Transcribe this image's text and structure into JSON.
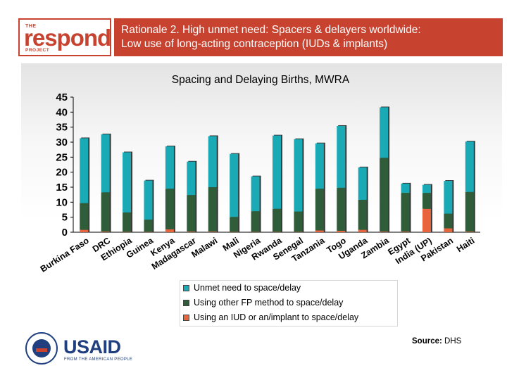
{
  "header": {
    "logo": {
      "the": "THE",
      "word": "respond",
      "project": "PROJECT"
    },
    "title_line1": "Rationale 2. High unmet need: Spacers & delayers worldwide:",
    "title_line2": "Low use of long-acting contraception (IUDs & implants)",
    "accent_color": "#c7432f"
  },
  "footer": {
    "usaid_name": "USAID",
    "usaid_tagline": "FROM THE AMERICAN PEOPLE",
    "source_label": "Source:",
    "source_value": "DHS"
  },
  "chart_data": {
    "type": "bar",
    "stacked": true,
    "title": "Spacing and Delaying Births, MWRA",
    "xlabel": "",
    "ylabel": "",
    "ylim": [
      0,
      45
    ],
    "yticks": [
      0,
      5,
      10,
      15,
      20,
      25,
      30,
      35,
      40,
      45
    ],
    "grid": false,
    "categories": [
      "Burkina Faso",
      "DRC",
      "Ethiopia",
      "Guinea",
      "Kenya",
      "Madagascar",
      "Malawi",
      "Mali",
      "Nigeria",
      "Rwanda",
      "Senegal",
      "Tanzania",
      "Togo",
      "Uganda",
      "Zambia",
      "Egypt",
      "India (UP)",
      "Pakistan",
      "Haiti"
    ],
    "series": [
      {
        "name": "Using an IUD or an/implant to space/delay",
        "color": "#e8643c",
        "values": [
          0.8,
          0.2,
          0.1,
          0.1,
          1.0,
          0.2,
          0.2,
          0.1,
          0.1,
          0.1,
          0.1,
          0.6,
          0.5,
          0.8,
          0.2,
          0.2,
          7.8,
          1.3,
          0.2
        ]
      },
      {
        "name": "Using other FP method to space/delay",
        "color": "#2f5d3a",
        "values": [
          8.9,
          13.1,
          6.5,
          4.1,
          13.5,
          12.2,
          14.8,
          5.0,
          6.9,
          7.7,
          6.8,
          13.9,
          14.3,
          10.0,
          24.6,
          12.9,
          5.3,
          4.9,
          13.2
        ]
      },
      {
        "name": "Unmet need to space/delay",
        "color": "#1aaab6",
        "values": [
          21.6,
          19.3,
          20.0,
          13.0,
          14.1,
          11.1,
          17.0,
          21.0,
          11.6,
          24.4,
          24.1,
          15.1,
          20.6,
          10.8,
          16.8,
          3.1,
          2.7,
          10.9,
          16.8
        ]
      }
    ],
    "legend_order": [
      2,
      1,
      0
    ],
    "legend_position": "bottom-center"
  }
}
